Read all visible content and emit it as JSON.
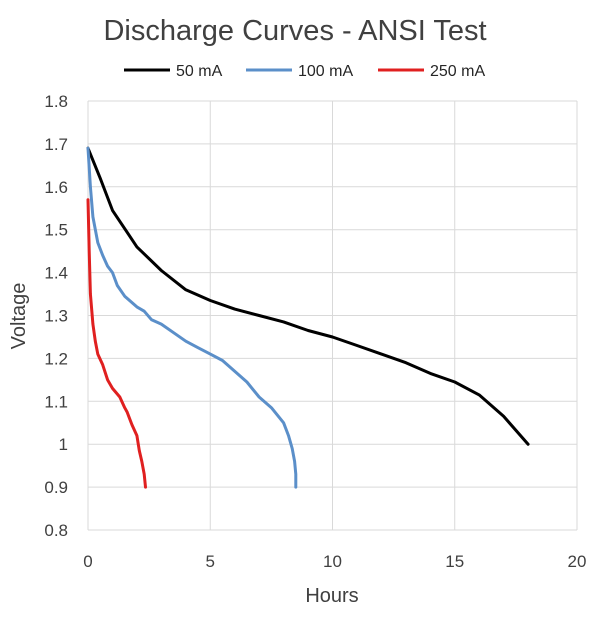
{
  "chart_data": {
    "type": "line",
    "title": "Discharge Curves - ANSI Test",
    "xlabel": "Hours",
    "ylabel": "Voltage",
    "xlim": [
      0,
      20
    ],
    "ylim": [
      0.8,
      1.8
    ],
    "xticks": [
      0,
      5,
      10,
      15,
      20
    ],
    "yticks": [
      0.8,
      0.9,
      1,
      1.1,
      1.2,
      1.3,
      1.4,
      1.5,
      1.6,
      1.7,
      1.8
    ],
    "xtick_labels": [
      "0",
      "5",
      "10",
      "15",
      "20"
    ],
    "ytick_labels": [
      "0.8",
      "0.9",
      "1",
      "1.1",
      "1.2",
      "1.3",
      "1.4",
      "1.5",
      "1.6",
      "1.7",
      "1.8"
    ],
    "grid": true,
    "legend_position": "top",
    "series": [
      {
        "name": "50 mA",
        "color": "#000000",
        "x": [
          0,
          0.5,
          1,
          2,
          3,
          4,
          5,
          6,
          7,
          8,
          9,
          10,
          11,
          12,
          13,
          14,
          15,
          16,
          17,
          18
        ],
        "y": [
          1.69,
          1.62,
          1.545,
          1.46,
          1.405,
          1.36,
          1.335,
          1.315,
          1.3,
          1.285,
          1.265,
          1.25,
          1.23,
          1.21,
          1.19,
          1.165,
          1.145,
          1.115,
          1.065,
          1.0
        ]
      },
      {
        "name": "100 mA",
        "color": "#5b8fc9",
        "x": [
          0,
          0.1,
          0.2,
          0.4,
          0.6,
          0.8,
          1.0,
          1.2,
          1.5,
          2.0,
          2.3,
          2.6,
          3.0,
          3.5,
          4.0,
          4.5,
          5.0,
          5.5,
          6.0,
          6.5,
          7.0,
          7.5,
          8.0,
          8.2,
          8.35,
          8.45,
          8.5,
          8.5
        ],
        "y": [
          1.69,
          1.6,
          1.53,
          1.47,
          1.44,
          1.415,
          1.4,
          1.37,
          1.345,
          1.32,
          1.31,
          1.29,
          1.28,
          1.26,
          1.24,
          1.225,
          1.21,
          1.195,
          1.17,
          1.145,
          1.11,
          1.085,
          1.05,
          1.02,
          0.99,
          0.96,
          0.93,
          0.9
        ]
      },
      {
        "name": "250 mA",
        "color": "#e02020",
        "x": [
          0,
          0.05,
          0.1,
          0.2,
          0.3,
          0.4,
          0.6,
          0.8,
          1.0,
          1.3,
          1.5,
          1.6,
          1.8,
          2.0,
          2.1,
          2.2,
          2.3,
          2.35
        ],
        "y": [
          1.57,
          1.45,
          1.35,
          1.28,
          1.24,
          1.21,
          1.185,
          1.15,
          1.13,
          1.11,
          1.085,
          1.075,
          1.045,
          1.02,
          0.985,
          0.96,
          0.93,
          0.9
        ]
      }
    ]
  }
}
